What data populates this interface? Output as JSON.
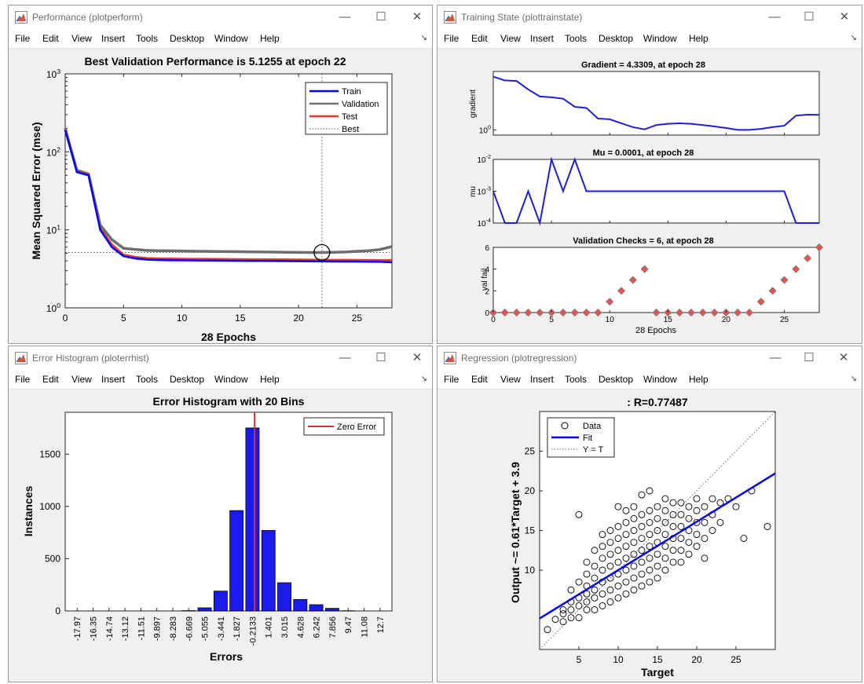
{
  "windows": {
    "perform": {
      "title": "Performance (plotperform)",
      "menu": [
        "File",
        "Edit",
        "View",
        "Insert",
        "Tools",
        "Desktop",
        "Window",
        "Help"
      ]
    },
    "trainstate": {
      "title": "Training State (plottrainstate)",
      "menu": [
        "File",
        "Edit",
        "View",
        "Insert",
        "Tools",
        "Desktop",
        "Window",
        "Help"
      ]
    },
    "errhist": {
      "title": "Error Histogram (ploterrhist)",
      "menu": [
        "File",
        "Edit",
        "View",
        "Insert",
        "Tools",
        "Desktop",
        "Window",
        "Help"
      ]
    },
    "regression": {
      "title": "Regression (plotregression)",
      "menu": [
        "File",
        "Edit",
        "View",
        "Insert",
        "Tools",
        "Desktop",
        "Window",
        "Help"
      ]
    }
  },
  "window_controls": {
    "minimize": "—",
    "maximize": "☐",
    "close": "✕",
    "menu_arrow": "↘"
  },
  "icon_names": {
    "window": "matlab-figure-icon"
  },
  "chart_data": [
    {
      "id": "performance",
      "type": "line",
      "title": "Best Validation Performance is 5.1255 at epoch 22",
      "xlabel": "28 Epochs",
      "ylabel": "Mean Squared Error  (mse)",
      "xlim": [
        0,
        28
      ],
      "ylim": [
        1,
        1000
      ],
      "yscale": "log",
      "xticks": [
        "0",
        "5",
        "10",
        "15",
        "20",
        "25"
      ],
      "yticks": [
        {
          "base": "10",
          "exp": "0"
        },
        {
          "base": "10",
          "exp": "1"
        },
        {
          "base": "10",
          "exp": "2"
        },
        {
          "base": "10",
          "exp": "3"
        }
      ],
      "legend_position": "top-right",
      "best_epoch": 22,
      "best_value": 5.1255,
      "x": [
        0,
        1,
        2,
        3,
        4,
        5,
        6,
        7,
        8,
        9,
        10,
        11,
        12,
        13,
        14,
        15,
        16,
        17,
        18,
        19,
        20,
        21,
        22,
        23,
        24,
        25,
        26,
        27,
        28
      ],
      "series": [
        {
          "name": "Train",
          "color": "#0000ff",
          "values": [
            190,
            55,
            50,
            10,
            6,
            4.6,
            4.3,
            4.15,
            4.1,
            4.08,
            4.06,
            4.05,
            4.04,
            4.03,
            4.02,
            4.01,
            4.0,
            3.99,
            3.98,
            3.97,
            3.96,
            3.95,
            3.94,
            3.93,
            3.92,
            3.91,
            3.9,
            3.89,
            3.85
          ]
        },
        {
          "name": "Validation",
          "color": "#6e6e6e",
          "values": [
            200,
            58,
            52,
            11.5,
            7.5,
            5.8,
            5.6,
            5.45,
            5.4,
            5.38,
            5.35,
            5.32,
            5.3,
            5.28,
            5.26,
            5.24,
            5.22,
            5.2,
            5.18,
            5.16,
            5.14,
            5.13,
            5.1255,
            5.15,
            5.2,
            5.3,
            5.4,
            5.6,
            6.1
          ]
        },
        {
          "name": "Test",
          "color": "#e33c2b",
          "values": [
            195,
            56,
            51,
            10.5,
            6.5,
            4.8,
            4.5,
            4.35,
            4.3,
            4.28,
            4.26,
            4.25,
            4.24,
            4.23,
            4.22,
            4.21,
            4.2,
            4.19,
            4.18,
            4.17,
            4.16,
            4.15,
            4.14,
            4.13,
            4.12,
            4.11,
            4.1,
            4.09,
            4.1
          ]
        },
        {
          "name": "Best",
          "style": "dotted",
          "color": "#555555"
        }
      ]
    },
    {
      "id": "training-state",
      "type": "line",
      "xlabel": "28 Epochs",
      "xlim": [
        0,
        28
      ],
      "xticks": [
        "0",
        "5",
        "10",
        "15",
        "20",
        "25"
      ],
      "subplots": [
        {
          "title": "Gradient = 4.3309, at epoch 28",
          "ylabel": "gradient",
          "yscale": "log",
          "ytick": {
            "base": "10",
            "exp": "0"
          },
          "y": [
            180,
            125,
            118,
            52,
            26,
            24,
            21,
            9.5,
            8.5,
            3.0,
            2.8,
            1.9,
            1.3,
            1.05,
            1.6,
            1.8,
            1.9,
            1.8,
            1.6,
            1.4,
            1.2,
            1.0,
            1.0,
            1.1,
            1.3,
            1.5,
            4.0,
            4.4,
            4.3309
          ]
        },
        {
          "title": "Mu = 0.0001, at epoch 28",
          "ylabel": "mu",
          "yscale": "log",
          "yticks": [
            {
              "base": "10",
              "exp": "-4"
            },
            {
              "base": "10",
              "exp": "-3"
            },
            {
              "base": "10",
              "exp": "-2"
            }
          ],
          "y": [
            0.001,
            0.0001,
            0.0001,
            0.001,
            0.0001,
            0.01,
            0.001,
            0.01,
            0.001,
            0.001,
            0.001,
            0.001,
            0.001,
            0.001,
            0.001,
            0.001,
            0.001,
            0.001,
            0.001,
            0.001,
            0.001,
            0.001,
            0.001,
            0.001,
            0.001,
            0.001,
            0.0001,
            0.0001,
            0.0001
          ]
        },
        {
          "title": "Validation Checks = 6, at epoch 28",
          "ylabel": "val fail",
          "ylim": [
            0,
            6
          ],
          "yticks": [
            "0",
            "2",
            "4",
            "6"
          ],
          "y": [
            0,
            0,
            0,
            0,
            0,
            0,
            0,
            0,
            0,
            0,
            1,
            2,
            3,
            4,
            0,
            0,
            0,
            0,
            0,
            0,
            0,
            0,
            0,
            1,
            2,
            3,
            4,
            5,
            6
          ]
        }
      ]
    },
    {
      "id": "error-histogram",
      "type": "bar",
      "title": "Error Histogram with 20 Bins",
      "xlabel": "Errors",
      "ylabel": "Instances",
      "ylim": [
        0,
        1900
      ],
      "yticks": [
        "0",
        "500",
        "1000",
        "1500"
      ],
      "legend": "Zero Error",
      "legend_position": "top-right",
      "categories": [
        "-17.97",
        "-16.35",
        "-14.74",
        "-13.12",
        "-11.51",
        "-9.897",
        "-8.283",
        "-6.669",
        "-5.055",
        "-3.441",
        "-1.827",
        "-0.2133",
        "1.401",
        "3.015",
        "4.628",
        "6.242",
        "7.856",
        "9.47",
        "11.08",
        "12.7"
      ],
      "values": [
        0,
        0,
        0,
        0,
        0,
        0,
        0,
        3,
        30,
        190,
        960,
        1750,
        770,
        270,
        110,
        60,
        25,
        2,
        0,
        0
      ],
      "bar_color": "#1a1af0",
      "zero_error_color": "#d9302c"
    },
    {
      "id": "regression",
      "type": "scatter",
      "title": ": R=0.77487",
      "xlabel": "Target",
      "ylabel": "Output ~= 0.61*Target + 3.9",
      "xlim": [
        0,
        30
      ],
      "ylim": [
        0,
        30
      ],
      "xticks": [
        "5",
        "10",
        "15",
        "20",
        "25"
      ],
      "yticks": [
        "10",
        "15",
        "20",
        "25"
      ],
      "legend_position": "top-left",
      "legend": [
        "Data",
        "Fit",
        "Y = T"
      ],
      "fit": {
        "slope": 0.61,
        "intercept": 3.9,
        "color": "#0000ff"
      },
      "points": [
        [
          1,
          2.5
        ],
        [
          2,
          3.8
        ],
        [
          3,
          4.5
        ],
        [
          3,
          3.5
        ],
        [
          3,
          5
        ],
        [
          4,
          4
        ],
        [
          4,
          5
        ],
        [
          4,
          6
        ],
        [
          4,
          7.5
        ],
        [
          5,
          4
        ],
        [
          5,
          5.5
        ],
        [
          5,
          6.5
        ],
        [
          5,
          8.5
        ],
        [
          5,
          17
        ],
        [
          6,
          5
        ],
        [
          6,
          6
        ],
        [
          6,
          7
        ],
        [
          6,
          8
        ],
        [
          6,
          9.5
        ],
        [
          6,
          11
        ],
        [
          7,
          5
        ],
        [
          7,
          6.5
        ],
        [
          7,
          7.5
        ],
        [
          7,
          9
        ],
        [
          7,
          10.5
        ],
        [
          7,
          12.5
        ],
        [
          8,
          5.5
        ],
        [
          8,
          7
        ],
        [
          8,
          8.5
        ],
        [
          8,
          10
        ],
        [
          8,
          11.5
        ],
        [
          8,
          13
        ],
        [
          8,
          14.5
        ],
        [
          9,
          6
        ],
        [
          9,
          7.5
        ],
        [
          9,
          9
        ],
        [
          9,
          10.5
        ],
        [
          9,
          12
        ],
        [
          9,
          13.5
        ],
        [
          9,
          15
        ],
        [
          10,
          6.5
        ],
        [
          10,
          8
        ],
        [
          10,
          9.5
        ],
        [
          10,
          11
        ],
        [
          10,
          12.5
        ],
        [
          10,
          14
        ],
        [
          10,
          15.5
        ],
        [
          10,
          18
        ],
        [
          11,
          7
        ],
        [
          11,
          8.5
        ],
        [
          11,
          10
        ],
        [
          11,
          11.5
        ],
        [
          11,
          13
        ],
        [
          11,
          14.5
        ],
        [
          11,
          16
        ],
        [
          11,
          17.5
        ],
        [
          12,
          7.5
        ],
        [
          12,
          9
        ],
        [
          12,
          10.5
        ],
        [
          12,
          12
        ],
        [
          12,
          13.5
        ],
        [
          12,
          15
        ],
        [
          12,
          16.5
        ],
        [
          12,
          18
        ],
        [
          13,
          8
        ],
        [
          13,
          9.5
        ],
        [
          13,
          11
        ],
        [
          13,
          12.5
        ],
        [
          13,
          14
        ],
        [
          13,
          15.5
        ],
        [
          13,
          17
        ],
        [
          13,
          19.5
        ],
        [
          14,
          8.5
        ],
        [
          14,
          10
        ],
        [
          14,
          11.5
        ],
        [
          14,
          13
        ],
        [
          14,
          14.5
        ],
        [
          14,
          16
        ],
        [
          14,
          17.5
        ],
        [
          14,
          20
        ],
        [
          15,
          9
        ],
        [
          15,
          10.5
        ],
        [
          15,
          12
        ],
        [
          15,
          13.5
        ],
        [
          15,
          15
        ],
        [
          15,
          16.5
        ],
        [
          15,
          18
        ],
        [
          16,
          10
        ],
        [
          16,
          11.5
        ],
        [
          16,
          13
        ],
        [
          16,
          14.5
        ],
        [
          16,
          16
        ],
        [
          16,
          17.5
        ],
        [
          16,
          19
        ],
        [
          17,
          11
        ],
        [
          17,
          12.5
        ],
        [
          17,
          14
        ],
        [
          17,
          15.5
        ],
        [
          17,
          17
        ],
        [
          17,
          18.5
        ],
        [
          18,
          11
        ],
        [
          18,
          12.5
        ],
        [
          18,
          14
        ],
        [
          18,
          15.5
        ],
        [
          18,
          17
        ],
        [
          18,
          18.5
        ],
        [
          19,
          12
        ],
        [
          19,
          13.5
        ],
        [
          19,
          15
        ],
        [
          19,
          16.5
        ],
        [
          19,
          18
        ],
        [
          20,
          13
        ],
        [
          20,
          14.5
        ],
        [
          20,
          16
        ],
        [
          20,
          17.5
        ],
        [
          20,
          19
        ],
        [
          21,
          11.5
        ],
        [
          21,
          14
        ],
        [
          21,
          16
        ],
        [
          21,
          18
        ],
        [
          22,
          15
        ],
        [
          22,
          17
        ],
        [
          22,
          19
        ],
        [
          23,
          16
        ],
        [
          23,
          18.5
        ],
        [
          24,
          19
        ],
        [
          25,
          18
        ],
        [
          26,
          14
        ],
        [
          27,
          20
        ],
        [
          29,
          15.5
        ]
      ]
    }
  ]
}
